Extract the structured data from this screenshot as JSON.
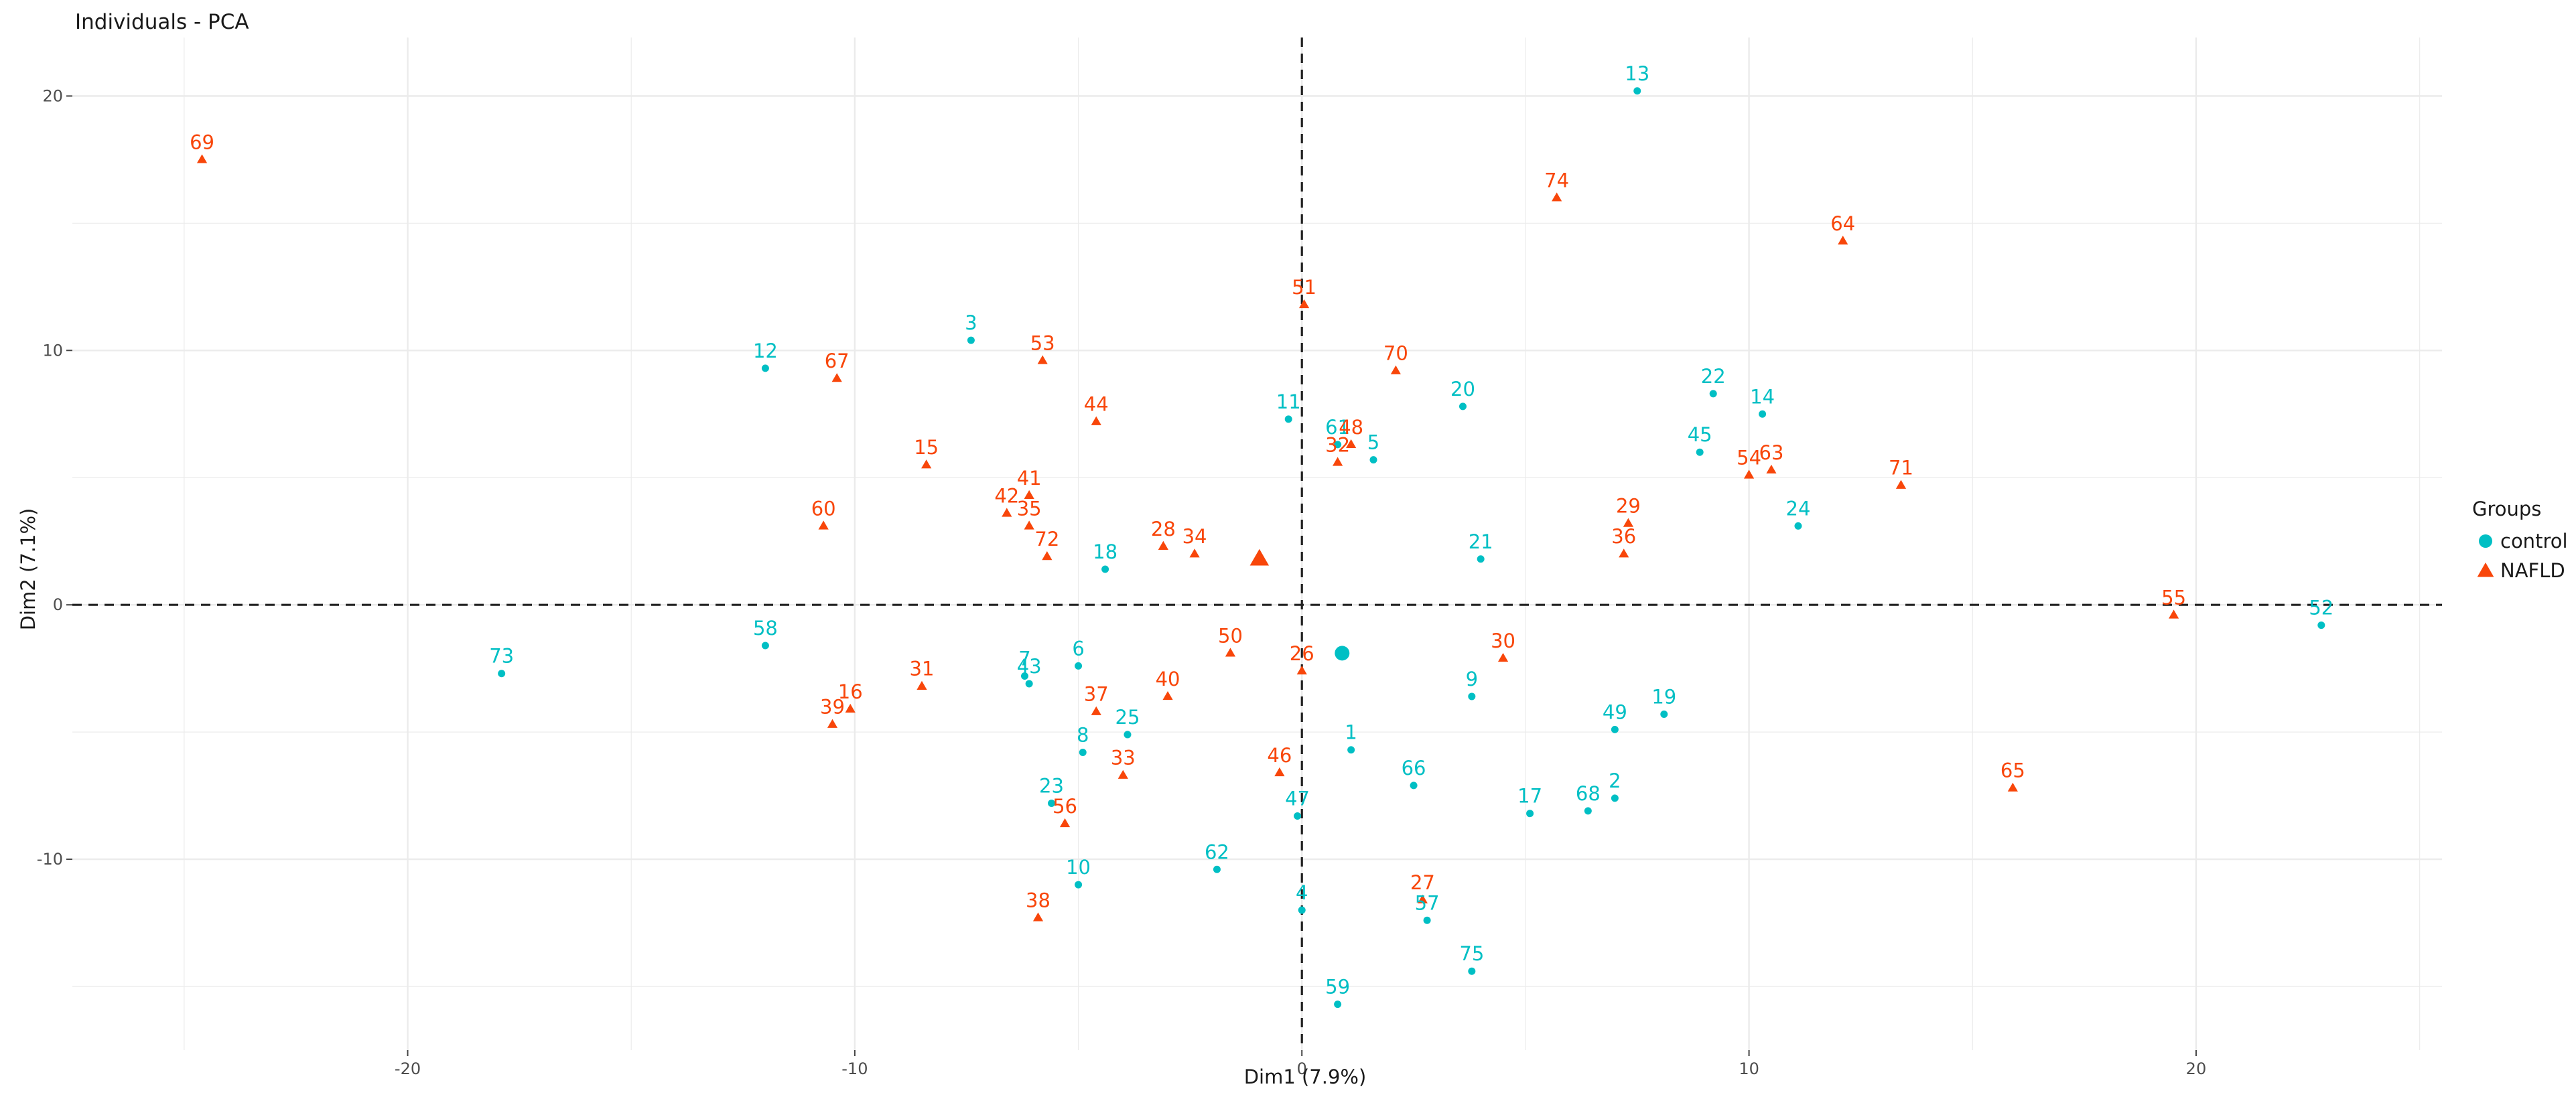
{
  "chart_data": {
    "type": "scatter",
    "title": "Individuals - PCA",
    "xlabel": "Dim1 (7.9%)",
    "ylabel": "Dim2 (7.1%)",
    "xlim": [
      -27.5,
      25.5
    ],
    "ylim": [
      -17.5,
      22.3
    ],
    "x_ticks": [
      -20,
      -10,
      0,
      10,
      20
    ],
    "y_ticks": [
      -10,
      0,
      10,
      20
    ],
    "x_tick_labels": [
      "-20",
      "-10",
      "0",
      "10",
      "20"
    ],
    "y_tick_labels": [
      "-10",
      "0",
      "10",
      "20"
    ],
    "grid": true,
    "reference_lines": {
      "x": 0,
      "y": 0,
      "style": "dashed"
    },
    "legend": {
      "title": "Groups",
      "position": "right",
      "entries": [
        {
          "label": "control",
          "color": "#00BFC4",
          "shape": "circle"
        },
        {
          "label": "NAFLD",
          "color": "#F8460A",
          "shape": "triangle"
        }
      ]
    },
    "series": [
      {
        "name": "control",
        "color": "#00BFC4",
        "shape": "circle",
        "centroid": {
          "x": 0.9,
          "y": -1.9
        },
        "points": [
          {
            "label": "13",
            "x": 7.5,
            "y": 20.2
          },
          {
            "label": "12",
            "x": -12.0,
            "y": 9.3
          },
          {
            "label": "3",
            "x": -7.4,
            "y": 10.4
          },
          {
            "label": "11",
            "x": -0.3,
            "y": 7.3
          },
          {
            "label": "61",
            "x": 0.8,
            "y": 6.3
          },
          {
            "label": "5",
            "x": 1.6,
            "y": 5.7
          },
          {
            "label": "20",
            "x": 3.6,
            "y": 7.8
          },
          {
            "label": "22",
            "x": 9.2,
            "y": 8.3
          },
          {
            "label": "14",
            "x": 10.3,
            "y": 7.5
          },
          {
            "label": "45",
            "x": 8.9,
            "y": 6.0
          },
          {
            "label": "24",
            "x": 11.1,
            "y": 3.1
          },
          {
            "label": "21",
            "x": 4.0,
            "y": 1.8
          },
          {
            "label": "18",
            "x": -4.4,
            "y": 1.4
          },
          {
            "label": "52",
            "x": 22.8,
            "y": -0.8
          },
          {
            "label": "73",
            "x": -17.9,
            "y": -2.7
          },
          {
            "label": "58",
            "x": -12.0,
            "y": -1.6
          },
          {
            "label": "7",
            "x": -6.2,
            "y": -2.8
          },
          {
            "label": "43",
            "x": -6.1,
            "y": -3.1
          },
          {
            "label": "6",
            "x": -5.0,
            "y": -2.4
          },
          {
            "label": "9",
            "x": 3.8,
            "y": -3.6
          },
          {
            "label": "49",
            "x": 7.0,
            "y": -4.9
          },
          {
            "label": "19",
            "x": 8.1,
            "y": -4.3
          },
          {
            "label": "8",
            "x": -4.9,
            "y": -5.8
          },
          {
            "label": "25",
            "x": -3.9,
            "y": -5.1
          },
          {
            "label": "1",
            "x": 1.1,
            "y": -5.7
          },
          {
            "label": "66",
            "x": 2.5,
            "y": -7.1
          },
          {
            "label": "23",
            "x": -5.6,
            "y": -7.8
          },
          {
            "label": "47",
            "x": -0.1,
            "y": -8.3
          },
          {
            "label": "17",
            "x": 5.1,
            "y": -8.2
          },
          {
            "label": "68",
            "x": 6.4,
            "y": -8.1
          },
          {
            "label": "2",
            "x": 7.0,
            "y": -7.6
          },
          {
            "label": "10",
            "x": -5.0,
            "y": -11.0
          },
          {
            "label": "62",
            "x": -1.9,
            "y": -10.4
          },
          {
            "label": "4",
            "x": 0.0,
            "y": -12.0
          },
          {
            "label": "57",
            "x": 2.8,
            "y": -12.4
          },
          {
            "label": "75",
            "x": 3.8,
            "y": -14.4
          },
          {
            "label": "59",
            "x": 0.8,
            "y": -15.7
          }
        ]
      },
      {
        "name": "NAFLD",
        "color": "#F8460A",
        "shape": "triangle",
        "centroid": {
          "x": -0.95,
          "y": 1.8
        },
        "points": [
          {
            "label": "69",
            "x": -24.6,
            "y": 17.5
          },
          {
            "label": "74",
            "x": 5.7,
            "y": 16.0
          },
          {
            "label": "64",
            "x": 12.1,
            "y": 14.3
          },
          {
            "label": "51",
            "x": 0.05,
            "y": 11.8
          },
          {
            "label": "70",
            "x": 2.1,
            "y": 9.2
          },
          {
            "label": "67",
            "x": -10.4,
            "y": 8.9
          },
          {
            "label": "53",
            "x": -5.8,
            "y": 9.6
          },
          {
            "label": "44",
            "x": -4.6,
            "y": 7.2
          },
          {
            "label": "48",
            "x": 1.1,
            "y": 6.3
          },
          {
            "label": "32",
            "x": 0.8,
            "y": 5.6
          },
          {
            "label": "54",
            "x": 10.0,
            "y": 5.1
          },
          {
            "label": "63",
            "x": 10.5,
            "y": 5.3
          },
          {
            "label": "71",
            "x": 13.4,
            "y": 4.7
          },
          {
            "label": "15",
            "x": -8.4,
            "y": 5.5
          },
          {
            "label": "41",
            "x": -6.1,
            "y": 4.3
          },
          {
            "label": "42",
            "x": -6.6,
            "y": 3.6
          },
          {
            "label": "35",
            "x": -6.1,
            "y": 3.1
          },
          {
            "label": "60",
            "x": -10.7,
            "y": 3.1
          },
          {
            "label": "72",
            "x": -5.7,
            "y": 1.9
          },
          {
            "label": "28",
            "x": -3.1,
            "y": 2.3
          },
          {
            "label": "34",
            "x": -2.4,
            "y": 2.0
          },
          {
            "label": "29",
            "x": 7.3,
            "y": 3.2
          },
          {
            "label": "36",
            "x": 7.2,
            "y": 2.0
          },
          {
            "label": "55",
            "x": 19.5,
            "y": -0.4
          },
          {
            "label": "50",
            "x": -1.6,
            "y": -1.9
          },
          {
            "label": "26",
            "x": 0.0,
            "y": -2.6
          },
          {
            "label": "30",
            "x": 4.5,
            "y": -2.1
          },
          {
            "label": "31",
            "x": -8.5,
            "y": -3.2
          },
          {
            "label": "16",
            "x": -10.1,
            "y": -4.1
          },
          {
            "label": "39",
            "x": -10.5,
            "y": -4.7
          },
          {
            "label": "37",
            "x": -4.6,
            "y": -4.2
          },
          {
            "label": "40",
            "x": -3.0,
            "y": -3.6
          },
          {
            "label": "33",
            "x": -4.0,
            "y": -6.7
          },
          {
            "label": "46",
            "x": -0.5,
            "y": -6.6
          },
          {
            "label": "56",
            "x": -5.3,
            "y": -8.6
          },
          {
            "label": "65",
            "x": 15.9,
            "y": -7.2
          },
          {
            "label": "27",
            "x": 2.7,
            "y": -11.6
          },
          {
            "label": "38",
            "x": -5.9,
            "y": -12.3
          }
        ]
      }
    ]
  }
}
